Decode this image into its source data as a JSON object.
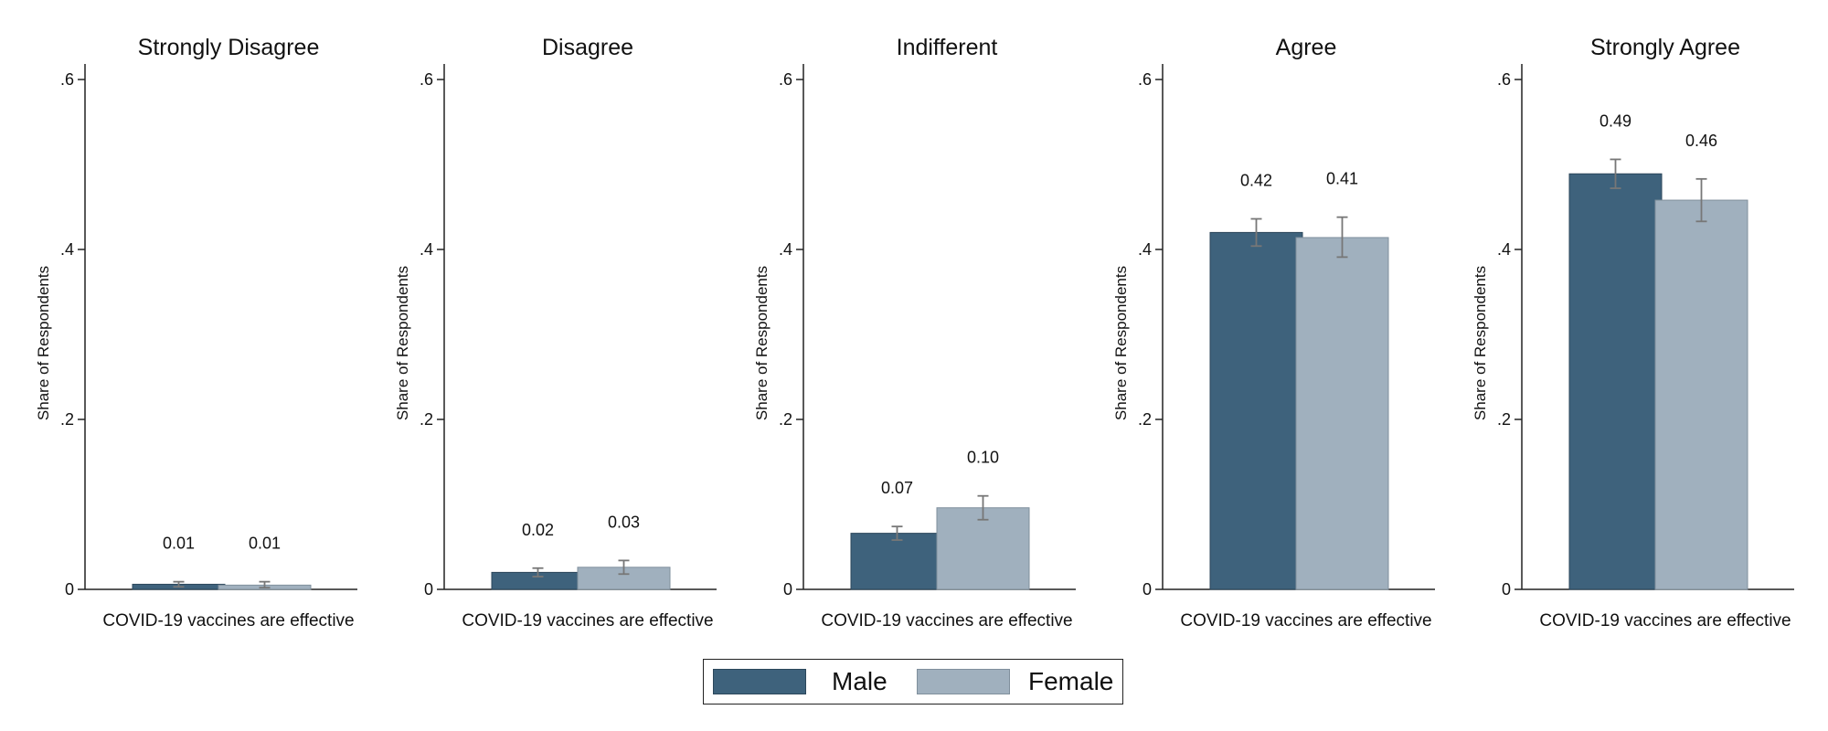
{
  "chart_data": {
    "type": "bar",
    "xlabel": "COVID-19 vaccines are effective",
    "ylabel": "Share of Respondents",
    "ylim": [
      0,
      0.62
    ],
    "yticks": [
      0,
      0.2,
      0.4,
      0.6
    ],
    "ytick_labels": [
      "0",
      ".2",
      ".4",
      ".6"
    ],
    "grid": false,
    "legend_position": "bottom-center",
    "series": [
      {
        "name": "Male",
        "color": "#3e627c"
      },
      {
        "name": "Female",
        "color": "#a0b0be"
      }
    ],
    "panels": [
      {
        "title": "Strongly Disagree",
        "bars": [
          {
            "series": "Male",
            "value": 0.006,
            "ci": [
              0.003,
              0.009
            ],
            "label": "0.01"
          },
          {
            "series": "Female",
            "value": 0.005,
            "ci": [
              0.002,
              0.009
            ],
            "label": "0.01"
          }
        ]
      },
      {
        "title": "Disagree",
        "bars": [
          {
            "series": "Male",
            "value": 0.02,
            "ci": [
              0.015,
              0.025
            ],
            "label": "0.02"
          },
          {
            "series": "Female",
            "value": 0.026,
            "ci": [
              0.018,
              0.034
            ],
            "label": "0.03"
          }
        ]
      },
      {
        "title": "Indifferent",
        "bars": [
          {
            "series": "Male",
            "value": 0.066,
            "ci": [
              0.058,
              0.074
            ],
            "label": "0.07"
          },
          {
            "series": "Female",
            "value": 0.096,
            "ci": [
              0.082,
              0.11
            ],
            "label": "0.10"
          }
        ]
      },
      {
        "title": "Agree",
        "bars": [
          {
            "series": "Male",
            "value": 0.42,
            "ci": [
              0.404,
              0.436
            ],
            "label": "0.42"
          },
          {
            "series": "Female",
            "value": 0.414,
            "ci": [
              0.391,
              0.438
            ],
            "label": "0.41"
          }
        ]
      },
      {
        "title": "Strongly Agree",
        "bars": [
          {
            "series": "Male",
            "value": 0.489,
            "ci": [
              0.472,
              0.506
            ],
            "label": "0.49"
          },
          {
            "series": "Female",
            "value": 0.458,
            "ci": [
              0.433,
              0.483
            ],
            "label": "0.46"
          }
        ]
      }
    ]
  },
  "legend": {
    "items": [
      {
        "label": "Male",
        "color": "#3e627c"
      },
      {
        "label": "Female",
        "color": "#a0b0be"
      }
    ]
  }
}
